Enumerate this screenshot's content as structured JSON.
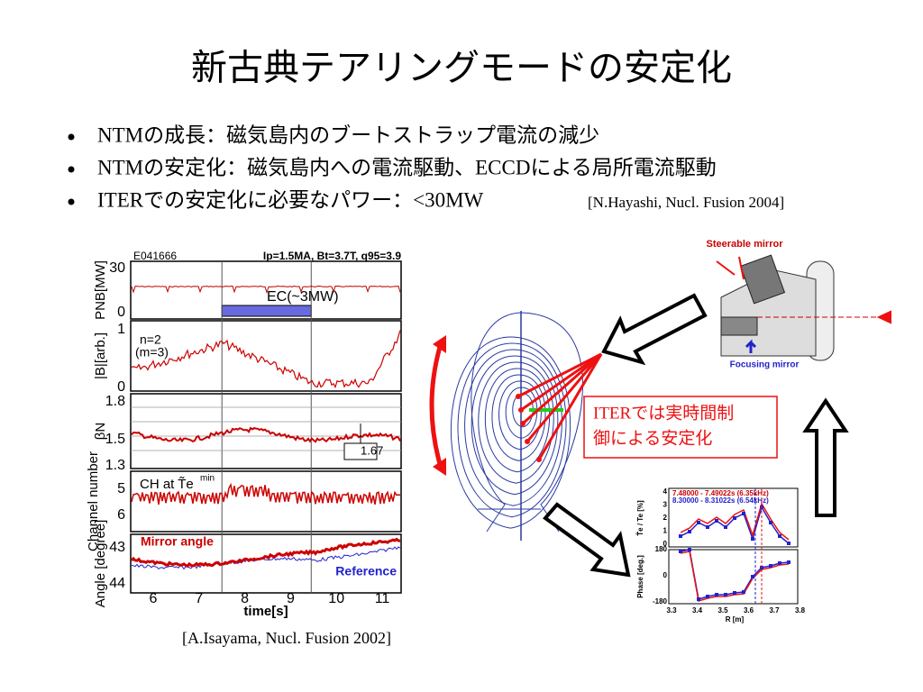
{
  "title": "新古典テアリングモードの安定化",
  "bullets": [
    {
      "text": "NTMの成長：磁気島内のブートストラップ電流の減少"
    },
    {
      "text": "NTMの安定化：磁気島内への電流駆動、ECCDによる局所電流駆動"
    },
    {
      "text": "ITERでの安定化に必要なパワー：<30MW",
      "ref": "[N.Hayashi, Nucl. Fusion 2004]"
    }
  ],
  "left_figure": {
    "shot": "E041666",
    "params": "Ip=1.5MA, Bt=3.7T, q95=3.9",
    "panels": [
      {
        "ylabel": "PNB[MW]",
        "yticks": [
          "30",
          "0"
        ],
        "notes": [
          "EC(~3MW)"
        ]
      },
      {
        "ylabel": "|B|[arb.]",
        "yticks": [
          "1",
          "0"
        ],
        "notes": [
          "n=2",
          "(m=3)"
        ]
      },
      {
        "ylabel": "βN",
        "yticks": [
          "1.8",
          "1.5",
          "1.3"
        ],
        "notes": [
          "1.67"
        ]
      },
      {
        "ylabel": "Channel number",
        "yticks": [
          "5",
          "6"
        ],
        "notes": [
          "CH at T̃e",
          "min"
        ]
      },
      {
        "ylabel": "Angle [degree]",
        "yticks": [
          "43",
          "44"
        ],
        "notes": [
          "Mirror angle",
          "Reference"
        ]
      }
    ],
    "xticks": [
      "6",
      "7",
      "8",
      "9",
      "10",
      "11"
    ],
    "xlabel": "time[s]",
    "caption": "[A.Isayama, Nucl. Fusion 2002]"
  },
  "right_figure": {
    "steerable": "Steerable mirror",
    "focusing": "Focusing mirror",
    "callout": [
      "ITERでは実時間制",
      "御による安定化"
    ],
    "inset": {
      "legend": [
        "7.48000 - 7.49022s (6.35kHz)",
        "8.30000 - 8.31022s (6.54kHz)"
      ],
      "ylabel_top": "T̃e / Te [%]",
      "yticks_top": [
        "4",
        "3",
        "2",
        "1",
        "0"
      ],
      "ylabel_bottom": "Phase [deg.]",
      "yticks_bottom": [
        "180",
        "0",
        "-180"
      ],
      "xticks": [
        "3.3",
        "3.4",
        "3.5",
        "3.6",
        "3.7",
        "3.8"
      ],
      "xlabel": "R [m]"
    }
  }
}
